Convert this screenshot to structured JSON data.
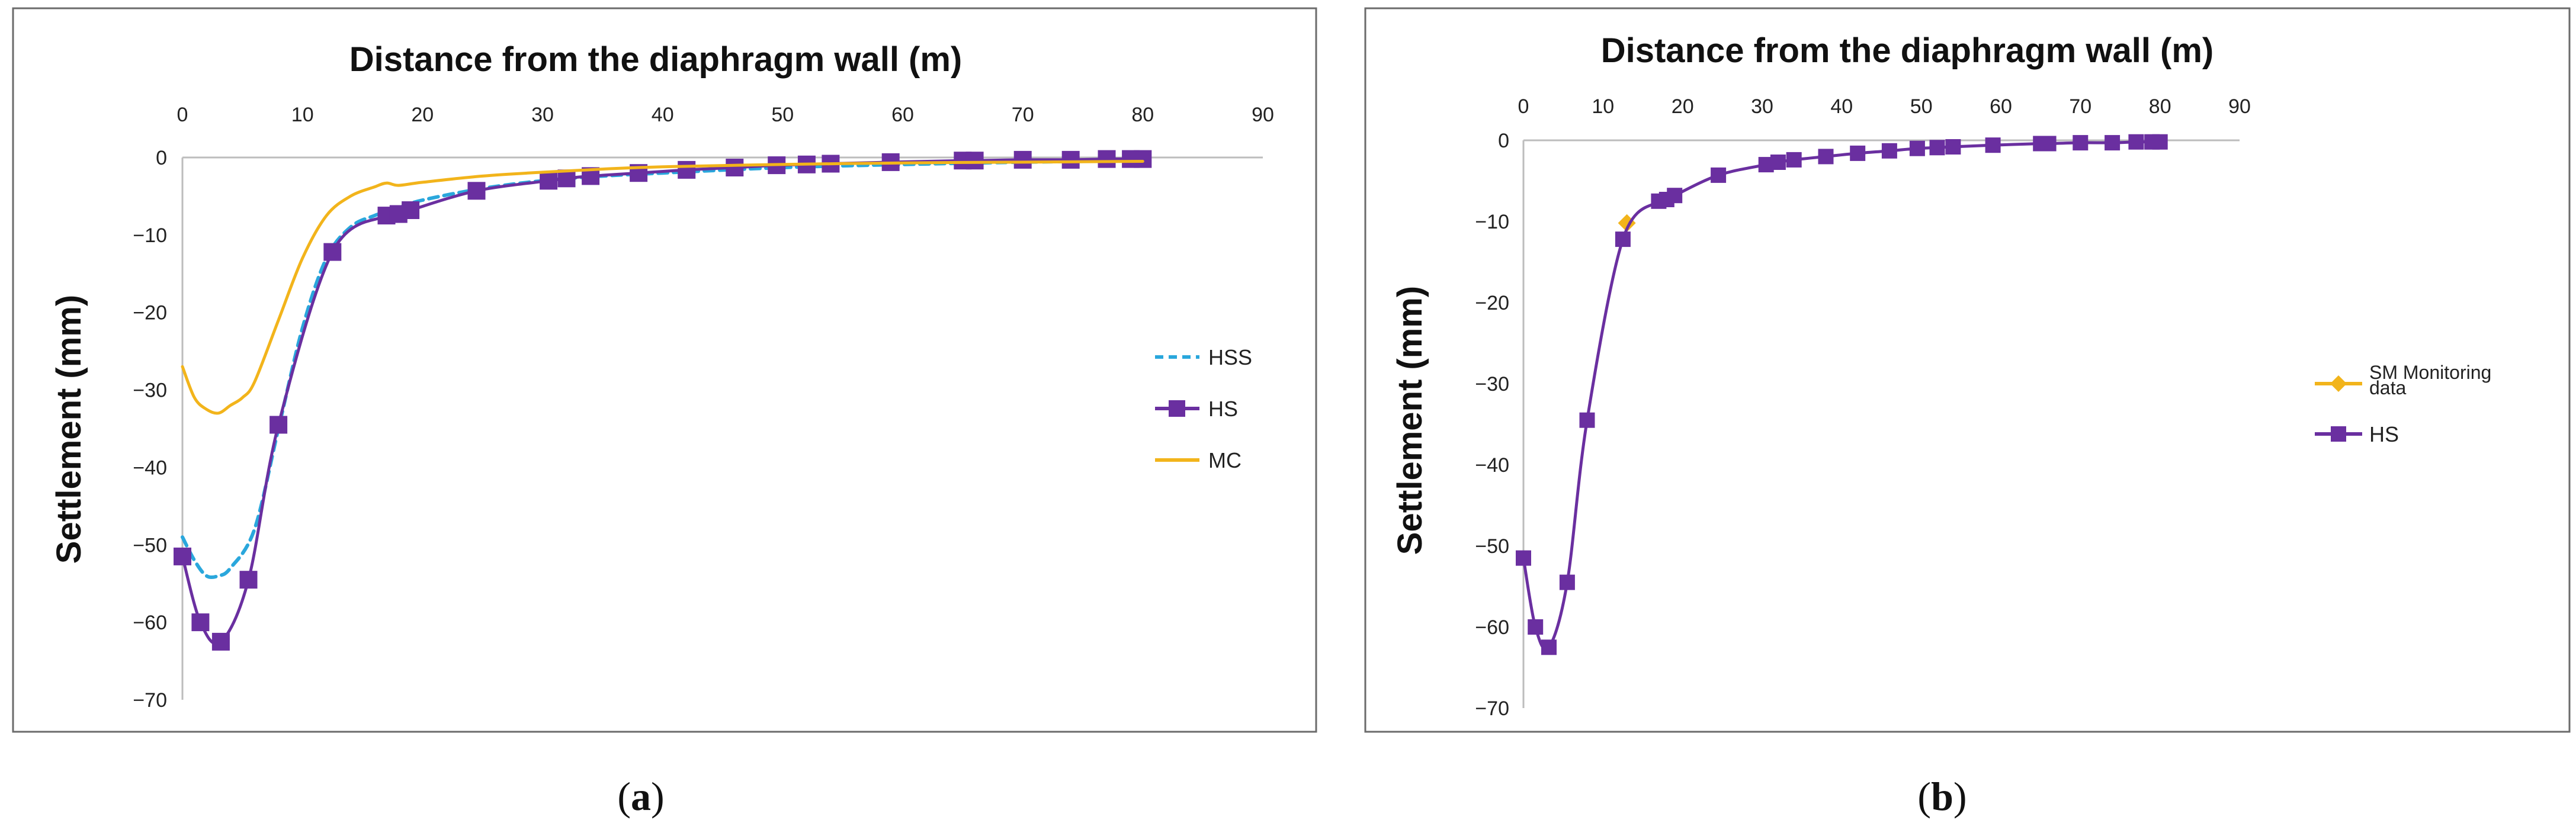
{
  "chart_data": [
    {
      "type": "line",
      "panel": "a",
      "caption": "a",
      "title": "Distance from the diaphragm wall (m)",
      "xlabel": "Distance from the diaphragm wall (m)",
      "ylabel": "Settlement (mm)",
      "xlim": [
        0,
        90
      ],
      "ylim": [
        -70,
        0
      ],
      "xticks": [
        "0",
        "10",
        "20",
        "30",
        "40",
        "50",
        "60",
        "70",
        "80",
        "90"
      ],
      "yticks": [
        "0",
        "−10",
        "−20",
        "−30",
        "−40",
        "−50",
        "−60",
        "−70"
      ],
      "legend_position": "right",
      "series": [
        {
          "name": "HSS",
          "color": "#2aa7dc",
          "dash": "dashed",
          "marker": "none",
          "x": [
            0,
            1,
            2,
            3,
            4,
            6,
            8,
            10,
            12,
            14,
            16,
            18,
            20,
            25,
            30,
            35,
            40,
            50,
            60,
            70,
            80
          ],
          "y": [
            -49,
            -52,
            -54,
            -54,
            -53,
            -48,
            -35,
            -22,
            -13,
            -9,
            -7.5,
            -6.5,
            -5.5,
            -4,
            -3,
            -2.4,
            -2,
            -1.3,
            -0.9,
            -0.6,
            -0.4
          ]
        },
        {
          "name": "HS",
          "color": "#6a2fa0",
          "dash": "solid",
          "marker": "square",
          "x": [
            0,
            1.5,
            3.2,
            5.5,
            8,
            12.5,
            17,
            18,
            19,
            24.5,
            30.5,
            32,
            34,
            38,
            42,
            46,
            49.5,
            52,
            54,
            59,
            65,
            66,
            70,
            74,
            77,
            79,
            80
          ],
          "y": [
            -51.5,
            -60,
            -62.5,
            -54.5,
            -34.5,
            -12.2,
            -7.5,
            -7.3,
            -6.8,
            -4.3,
            -3,
            -2.7,
            -2.4,
            -2,
            -1.6,
            -1.3,
            -1,
            -0.9,
            -0.8,
            -0.6,
            -0.4,
            -0.4,
            -0.3,
            -0.3,
            -0.2,
            -0.2,
            -0.2
          ]
        },
        {
          "name": "MC",
          "color": "#f2b41b",
          "dash": "solid",
          "marker": "none",
          "x": [
            0,
            1,
            2,
            3,
            4,
            5,
            6,
            8,
            10,
            12,
            14,
            16,
            17,
            18,
            20,
            25,
            30,
            35,
            40,
            50,
            60,
            70,
            80
          ],
          "y": [
            -27,
            -31,
            -32.5,
            -33,
            -32,
            -31,
            -29,
            -21,
            -13,
            -7.5,
            -5,
            -3.8,
            -3.3,
            -3.6,
            -3.2,
            -2.4,
            -1.9,
            -1.5,
            -1.2,
            -0.9,
            -0.7,
            -0.6,
            -0.5
          ]
        }
      ]
    },
    {
      "type": "line",
      "panel": "b",
      "caption": "b",
      "title": "Distance from the diaphragm wall (m)",
      "xlabel": "Distance from the diaphragm wall (m)",
      "ylabel": "Settlement (mm)",
      "xlim": [
        0,
        90
      ],
      "ylim": [
        -70,
        0
      ],
      "xticks": [
        "0",
        "10",
        "20",
        "30",
        "40",
        "50",
        "60",
        "70",
        "80",
        "90"
      ],
      "yticks": [
        "0",
        "−10",
        "−20",
        "−30",
        "−40",
        "−50",
        "−60",
        "−70"
      ],
      "legend_position": "right",
      "series": [
        {
          "name": "SM Monitoring data",
          "color": "#f2b41b",
          "dash": "solid",
          "marker": "diamond",
          "x": [
            13
          ],
          "y": [
            -10.2
          ]
        },
        {
          "name": "HS",
          "color": "#6a2fa0",
          "dash": "solid",
          "marker": "square",
          "x": [
            0,
            1.5,
            3.2,
            5.5,
            8,
            12.5,
            17,
            18,
            19,
            24.5,
            30.5,
            32,
            34,
            38,
            42,
            46,
            49.5,
            52,
            54,
            59,
            65,
            66,
            70,
            74,
            77,
            79,
            80
          ],
          "y": [
            -51.5,
            -60,
            -62.5,
            -54.5,
            -34.5,
            -12.2,
            -7.5,
            -7.3,
            -6.8,
            -4.3,
            -3,
            -2.7,
            -2.4,
            -2,
            -1.6,
            -1.3,
            -1,
            -0.9,
            -0.8,
            -0.6,
            -0.4,
            -0.4,
            -0.3,
            -0.3,
            -0.2,
            -0.2,
            -0.2
          ]
        }
      ]
    }
  ]
}
